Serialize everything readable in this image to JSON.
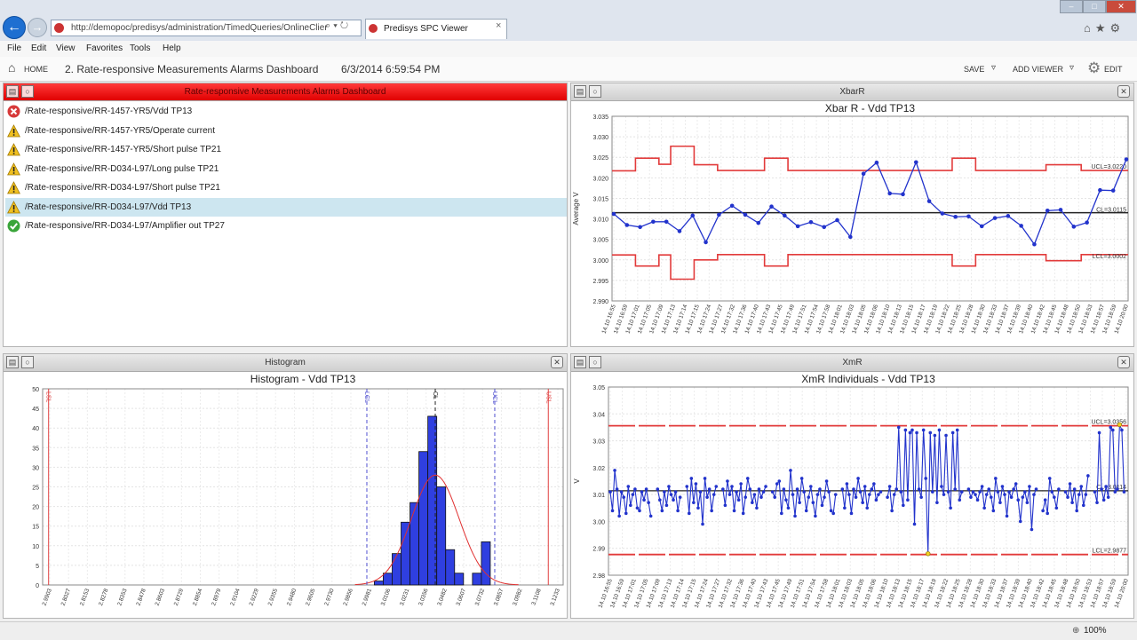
{
  "browser": {
    "address": "http://demopoc/predisys/administration/TimedQueries/OnlineClier",
    "address_controls": "⌕ ▾ ↻",
    "tab_title": "Predisys SPC Viewer",
    "tab_close": "×",
    "window_controls": {
      "minimize": "–",
      "maximize": "□",
      "close": "✕"
    },
    "toolbar_icons": "⌂★⚙",
    "back": "←",
    "forward": "→"
  },
  "menu": [
    "File",
    "Edit",
    "View",
    "Favorites",
    "Tools",
    "Help"
  ],
  "toolbar": {
    "home_icon": "⌂",
    "home": "HOME",
    "title": "2. Rate-responsive Measurements Alarms Dashboard",
    "timestamp": "6/3/2014 6:59:54 PM",
    "save": "SAVE",
    "add_viewer": "ADD VIEWER",
    "edit": "EDIT",
    "dropdown_glyph": "▿",
    "gear_glyph": "⚙"
  },
  "icons": {
    "panel_a": "▤",
    "panel_b": "○",
    "panel_close": "✕",
    "status_zoom": "⊕"
  },
  "alarms_panel": {
    "title": "Rate-responsive Measurements Alarms Dashboard",
    "items": [
      {
        "status": "error",
        "path": "/Rate-responsive/RR-1457-YR5/Vdd TP13"
      },
      {
        "status": "warning",
        "path": "/Rate-responsive/RR-1457-YR5/Operate current"
      },
      {
        "status": "warning",
        "path": "/Rate-responsive/RR-1457-YR5/Short pulse TP21"
      },
      {
        "status": "warning",
        "path": "/Rate-responsive/RR-D034-L97/Long pulse TP21"
      },
      {
        "status": "warning",
        "path": "/Rate-responsive/RR-D034-L97/Short pulse TP21"
      },
      {
        "status": "warning",
        "path": "/Rate-responsive/RR-D034-L97/Vdd TP13",
        "selected": true
      },
      {
        "status": "ok",
        "path": "/Rate-responsive/RR-D034-L97/Amplifier out TP27"
      }
    ]
  },
  "xbar_panel": {
    "header": "XbarR"
  },
  "hist_panel": {
    "header": "Histogram"
  },
  "xmr_panel": {
    "header": "XmR"
  },
  "status_bar": {
    "zoom": "100%"
  },
  "chart_data": [
    {
      "id": "xbar",
      "type": "line",
      "title": "Xbar R - Vdd TP13",
      "ylabel": "Average V",
      "ylim": [
        2.99,
        3.035
      ],
      "yticks": [
        "3.035",
        "3.030",
        "3.025",
        "3.020",
        "3.015",
        "3.010",
        "3.005",
        "3.000",
        "2.995",
        "2.990"
      ],
      "x_labels": [
        "14.10 16:55",
        "14.10 16:59",
        "14.10 17:01",
        "14.10 17:05",
        "14.10 17:09",
        "14.10 17:13",
        "14.10 17:14",
        "14.10 17:15",
        "14.10 17:24",
        "14.10 17:27",
        "14.10 17:32",
        "14.10 17:36",
        "14.10 17:40",
        "14.10 17:43",
        "14.10 17:45",
        "14.10 17:49",
        "14.10 17:51",
        "14.10 17:54",
        "14.10 17:58",
        "14.10 18:01",
        "14.10 18:03",
        "14.10 18:05",
        "14.10 18:06",
        "14.10 18:10",
        "14.10 18:13",
        "14.10 18:15",
        "14.10 18:17",
        "14.10 18:19",
        "14.10 18:22",
        "14.10 18:25",
        "14.10 18:28",
        "14.10 18:30",
        "14.10 18:33",
        "14.10 18:37",
        "14.10 18:39",
        "14.10 18:40",
        "14.10 18:42",
        "14.10 18:45",
        "14.10 18:48",
        "14.10 18:50",
        "14.10 18:53",
        "14.10 18:57",
        "14.10 18:59",
        "14.10 20:00"
      ],
      "values": [
        3.0112,
        3.0085,
        3.008,
        3.0093,
        3.0093,
        3.007,
        3.0108,
        3.0043,
        3.011,
        3.0132,
        3.011,
        3.009,
        3.013,
        3.0108,
        3.0082,
        3.0092,
        3.008,
        3.0097,
        3.0056,
        3.021,
        3.0237,
        3.0162,
        3.016,
        3.0238,
        3.0143,
        3.0113,
        3.0105,
        3.0106,
        3.0082,
        3.0102,
        3.0107,
        3.0083,
        3.0038,
        3.012,
        3.0122,
        3.0081,
        3.0091,
        3.017,
        3.0169,
        3.0245
      ],
      "center": 3.0115,
      "center_label": "CL=3.0115",
      "ucl_label": "UCL=3.0220",
      "lcl_label": "LCL=3.0002",
      "ucl_segments": [
        [
          0,
          3.0217
        ],
        [
          2,
          3.0248
        ],
        [
          4,
          3.0233
        ],
        [
          5,
          3.0277
        ],
        [
          7,
          3.0232
        ],
        [
          9,
          3.0218
        ],
        [
          13,
          3.0248
        ],
        [
          15,
          3.0218
        ],
        [
          29,
          3.0248
        ],
        [
          31,
          3.0218
        ],
        [
          37,
          3.0232
        ],
        [
          40,
          3.0218
        ],
        [
          44,
          3.0218
        ]
      ],
      "lcl_segments": [
        [
          0,
          3.0012
        ],
        [
          2,
          2.9985
        ],
        [
          4,
          3.0012
        ],
        [
          5,
          2.9953
        ],
        [
          7,
          3.0
        ],
        [
          9,
          3.0013
        ],
        [
          13,
          2.9985
        ],
        [
          15,
          3.0013
        ],
        [
          29,
          2.9985
        ],
        [
          31,
          3.0013
        ],
        [
          37,
          2.9998
        ],
        [
          40,
          3.0013
        ],
        [
          44,
          3.0013
        ]
      ]
    },
    {
      "id": "hist",
      "type": "bar",
      "title": "Histogram - Vdd TP13",
      "ylim": [
        0,
        50
      ],
      "yticks": [
        "50",
        "45",
        "40",
        "35",
        "30",
        "25",
        "20",
        "15",
        "10",
        "5",
        "0"
      ],
      "x_labels": [
        "2.9903",
        "2.8027",
        "2.8153",
        "2.8278",
        "2.8353",
        "2.8478",
        "2.8603",
        "2.8729",
        "2.8854",
        "2.8979",
        "2.9104",
        "2.9229",
        "2.9355",
        "2.9480",
        "2.9605",
        "2.9730",
        "2.9856",
        "2.9981",
        "3.0106",
        "3.0231",
        "3.0356",
        "3.0482",
        "3.0607",
        "3.0732",
        "3.0857",
        "3.0982",
        "3.1108",
        "3.1233"
      ],
      "bins": [
        {
          "x": 3.006,
          "v": 1
        },
        {
          "x": 3.012,
          "v": 3
        },
        {
          "x": 3.018,
          "v": 8
        },
        {
          "x": 3.024,
          "v": 16
        },
        {
          "x": 3.03,
          "v": 21
        },
        {
          "x": 3.036,
          "v": 34
        },
        {
          "x": 3.042,
          "v": 43
        },
        {
          "x": 3.048,
          "v": 25
        },
        {
          "x": 3.054,
          "v": 9
        },
        {
          "x": 3.06,
          "v": 3
        },
        {
          "x": 3.072,
          "v": 3
        },
        {
          "x": 3.078,
          "v": 11
        }
      ],
      "bin_width": 0.006,
      "xlim": [
        2.78,
        3.13
      ],
      "curve": {
        "mean": 3.044,
        "sd": 0.016,
        "peak": 28
      },
      "vlines": [
        {
          "x": 2.784,
          "label": "LSL",
          "color": "#e04040",
          "dash": "none"
        },
        {
          "x": 2.998,
          "label": "LCL",
          "color": "#5050d0",
          "dash": "4,3"
        },
        {
          "x": 3.044,
          "label": "CL",
          "color": "#222222",
          "dash": "4,3"
        },
        {
          "x": 3.084,
          "label": "UCL",
          "color": "#5050d0",
          "dash": "4,3"
        },
        {
          "x": 3.12,
          "label": "USL",
          "color": "#e04040",
          "dash": "none"
        }
      ]
    },
    {
      "id": "xmr",
      "type": "line",
      "title": "XmR Individuals - Vdd TP13",
      "ylabel": "V",
      "ylim": [
        2.98,
        3.05
      ],
      "yticks": [
        "3.05",
        "3.04",
        "3.03",
        "3.02",
        "3.01",
        "3.00",
        "2.99",
        "2.98"
      ],
      "x_labels": [
        "14.10 16:55",
        "14.10 16:59",
        "14.10 17:01",
        "14.10 17:05",
        "14.10 17:09",
        "14.10 17:13",
        "14.10 17:14",
        "14.10 17:15",
        "14.10 17:24",
        "14.10 17:27",
        "14.10 17:32",
        "14.10 17:36",
        "14.10 17:40",
        "14.10 17:43",
        "14.10 17:45",
        "14.10 17:49",
        "14.10 17:51",
        "14.10 17:54",
        "14.10 17:58",
        "14.10 18:01",
        "14.10 18:03",
        "14.10 18:05",
        "14.10 18:06",
        "14.10 18:10",
        "14.10 18:13",
        "14.10 18:15",
        "14.10 18:17",
        "14.10 18:19",
        "14.10 18:22",
        "14.10 18:25",
        "14.10 18:28",
        "14.10 18:30",
        "14.10 18:33",
        "14.10 18:37",
        "14.10 18:39",
        "14.10 18:40",
        "14.10 18:42",
        "14.10 18:45",
        "14.10 18:48",
        "14.10 18:50",
        "14.10 18:53",
        "14.10 18:57",
        "14.10 18:59",
        "14.10 20:00"
      ],
      "center": 3.0114,
      "center_label": "CL=3.0114",
      "ucl": 3.0356,
      "ucl_label": "UCL=3.0356",
      "lcl": 2.9877,
      "lcl_label": "LCL=2.9877",
      "segments": [
        [
          3.011,
          3.004,
          3.019,
          3.012,
          3.002,
          3.011,
          3.009,
          3.003,
          3.013,
          3.006,
          3.01,
          3.012,
          3.005,
          3.004,
          3.011,
          3.008,
          3.012,
          3.007,
          3.002
        ],
        [
          3.012,
          3.008,
          3.004,
          3.011,
          3.006,
          3.013,
          3.01,
          3.008,
          3.011,
          3.004,
          3.009
        ],
        [
          3.013,
          3.003,
          3.016,
          3.007,
          3.014,
          3.005,
          3.011,
          2.999,
          3.016,
          3.009,
          3.012,
          3.004,
          3.01,
          3.013
        ],
        [
          3.012,
          3.006,
          3.015,
          3.01,
          3.013,
          3.004,
          3.011,
          3.008,
          3.014,
          3.003,
          3.009,
          3.016,
          3.012,
          3.007,
          3.01,
          3.005,
          3.012,
          3.009,
          3.011,
          3.013
        ],
        [
          3.011,
          3.009,
          3.014,
          3.015,
          3.003,
          3.012,
          3.008,
          3.005,
          3.019,
          3.01,
          3.002,
          3.012,
          3.007,
          3.016,
          3.011,
          3.004,
          3.009,
          3.013,
          3.007,
          3.002,
          3.01,
          3.012,
          3.006,
          3.009,
          3.015,
          3.011,
          3.004,
          3.003,
          3.01
        ],
        [
          3.012,
          3.005,
          3.014,
          3.01,
          3.003,
          3.012,
          3.009,
          3.016,
          3.011,
          3.007,
          3.013,
          3.005,
          3.01,
          3.012,
          3.014,
          3.008,
          3.01,
          3.011
        ],
        [
          3.009,
          3.013,
          3.004,
          3.01,
          3.012,
          3.035,
          3.011,
          3.006,
          3.034,
          3.008,
          3.033,
          3.034,
          2.999,
          3.033,
          3.012,
          3.009,
          3.034,
          3.016,
          2.988,
          3.033,
          3.011,
          3.032,
          3.007,
          3.034,
          3.013,
          3.01,
          3.032,
          3.011,
          3.005,
          3.033,
          3.012,
          3.034,
          3.008,
          3.011
        ],
        [
          3.012,
          3.009,
          3.011,
          3.01,
          3.008,
          3.011,
          3.013,
          3.005,
          3.01,
          3.012,
          3.009,
          3.004,
          3.016,
          3.011,
          3.007,
          3.013,
          3.01,
          3.002,
          3.011,
          3.009,
          3.012,
          3.014,
          3.008,
          3.0,
          3.009,
          3.011,
          3.007,
          3.013,
          2.997,
          3.01,
          3.012
        ],
        [
          3.004,
          3.008,
          3.003,
          3.016,
          3.011,
          3.009,
          3.005,
          3.012
        ],
        [
          3.011,
          3.009,
          3.014,
          3.007,
          3.012,
          3.004,
          3.01,
          3.013,
          3.006,
          3.01,
          3.017
        ],
        [
          3.011,
          3.007,
          3.033,
          3.012,
          3.008,
          3.013,
          3.009,
          3.035,
          3.034,
          3.011,
          3.012,
          3.036,
          3.034,
          3.011
        ]
      ]
    }
  ]
}
